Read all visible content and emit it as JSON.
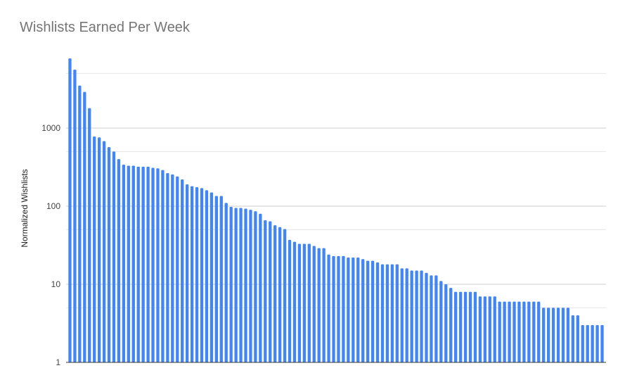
{
  "chart_data": {
    "type": "bar",
    "title": "Wishlists Earned Per Week",
    "xlabel": "",
    "ylabel": "Normalized Wishlists",
    "yscale": "log",
    "ylim": [
      1,
      10000
    ],
    "yticks": [
      1,
      10,
      100,
      1000
    ],
    "ytick_labels": [
      "1",
      "10",
      "100",
      "1000"
    ],
    "grid": true,
    "bar_color": "#4285f4",
    "values": [
      7800,
      5600,
      3500,
      2900,
      1800,
      780,
      760,
      680,
      570,
      500,
      400,
      340,
      330,
      330,
      320,
      320,
      320,
      310,
      305,
      290,
      265,
      255,
      240,
      220,
      190,
      180,
      175,
      170,
      160,
      150,
      135,
      135,
      110,
      98,
      95,
      95,
      93,
      90,
      86,
      80,
      66,
      64,
      57,
      54,
      51,
      37,
      35,
      33,
      33,
      33,
      31,
      29,
      29,
      24,
      23,
      23,
      23,
      22,
      22,
      22,
      21,
      20,
      20,
      19,
      18,
      18,
      18,
      18,
      16,
      16,
      15,
      15,
      15,
      14,
      13,
      13,
      11,
      10,
      9,
      8,
      8,
      8,
      8,
      8,
      7,
      7,
      7,
      7,
      6,
      6,
      6,
      6,
      6,
      6,
      6,
      6,
      6,
      5,
      5,
      5,
      5,
      5,
      5,
      4,
      4,
      3,
      3,
      3,
      3,
      3
    ]
  }
}
